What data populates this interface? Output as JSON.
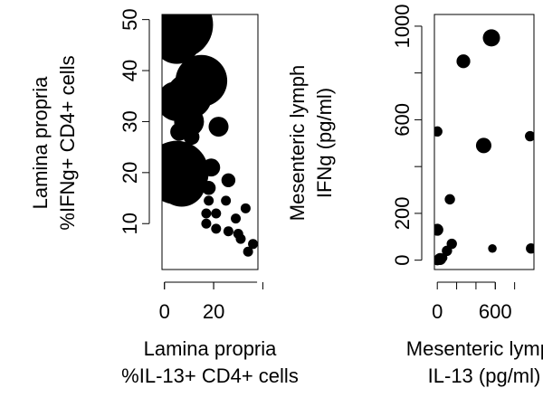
{
  "chart_data": [
    {
      "type": "scatter",
      "title": "",
      "xlabel": [
        "Lamina propria",
        "%IL-13+ CD4+ cells"
      ],
      "ylabel": [
        "Lamina propria",
        "%IFNg+ CD4+ cells"
      ],
      "xlim": [
        -1,
        38
      ],
      "ylim": [
        1,
        51
      ],
      "xticks": [
        0,
        20
      ],
      "yticks": [
        10,
        20,
        30,
        40,
        50
      ],
      "grid": false,
      "points": [
        {
          "x": 6,
          "y": 49,
          "size": 3.4
        },
        {
          "x": 2,
          "y": 50,
          "size": 3.2
        },
        {
          "x": 5,
          "y": 46,
          "size": 2.4
        },
        {
          "x": 15,
          "y": 38,
          "size": 2.6
        },
        {
          "x": 10,
          "y": 35,
          "size": 2.3
        },
        {
          "x": 5,
          "y": 34,
          "size": 2.0
        },
        {
          "x": 10,
          "y": 30,
          "size": 1.5
        },
        {
          "x": 6,
          "y": 28,
          "size": 0.9
        },
        {
          "x": 11,
          "y": 27,
          "size": 0.8
        },
        {
          "x": 22,
          "y": 29,
          "size": 1.0
        },
        {
          "x": 5,
          "y": 20,
          "size": 3.2
        },
        {
          "x": 7,
          "y": 18,
          "size": 2.4
        },
        {
          "x": 19,
          "y": 21,
          "size": 0.9
        },
        {
          "x": 18,
          "y": 17,
          "size": 0.7
        },
        {
          "x": 26,
          "y": 18.5,
          "size": 0.7
        },
        {
          "x": 18,
          "y": 14.5,
          "size": 0.5
        },
        {
          "x": 25,
          "y": 14.5,
          "size": 0.5
        },
        {
          "x": 17,
          "y": 12,
          "size": 0.5
        },
        {
          "x": 21,
          "y": 12,
          "size": 0.5
        },
        {
          "x": 33,
          "y": 13,
          "size": 0.5
        },
        {
          "x": 29,
          "y": 11,
          "size": 0.5
        },
        {
          "x": 17,
          "y": 10,
          "size": 0.5
        },
        {
          "x": 21,
          "y": 9,
          "size": 0.5
        },
        {
          "x": 26,
          "y": 8.5,
          "size": 0.5
        },
        {
          "x": 30,
          "y": 8,
          "size": 0.5
        },
        {
          "x": 31,
          "y": 7,
          "size": 0.5
        },
        {
          "x": 36,
          "y": 6,
          "size": 0.5
        },
        {
          "x": 34,
          "y": 4.5,
          "size": 0.5
        }
      ]
    },
    {
      "type": "scatter",
      "title": "",
      "xlabel": [
        "Mesenteric lymph",
        "IL-13 (pg/ml)"
      ],
      "ylabel": [
        "Mesenteric lymph",
        "IFNg (pg/ml)"
      ],
      "xlim": [
        -30,
        1000
      ],
      "ylim": [
        -40,
        1050
      ],
      "xticks": [
        0,
        600
      ],
      "yticks": [
        0,
        200,
        600,
        1000
      ],
      "grid": false,
      "points": [
        {
          "x": 560,
          "y": 950,
          "size": 1.0
        },
        {
          "x": 270,
          "y": 850,
          "size": 0.8
        },
        {
          "x": 0,
          "y": 550,
          "size": 0.6
        },
        {
          "x": 480,
          "y": 490,
          "size": 0.9
        },
        {
          "x": 960,
          "y": 530,
          "size": 0.6
        },
        {
          "x": 130,
          "y": 260,
          "size": 0.6
        },
        {
          "x": 0,
          "y": 130,
          "size": 0.7
        },
        {
          "x": 150,
          "y": 70,
          "size": 0.6
        },
        {
          "x": 100,
          "y": 40,
          "size": 0.6
        },
        {
          "x": 570,
          "y": 50,
          "size": 0.5
        },
        {
          "x": 970,
          "y": 50,
          "size": 0.6
        },
        {
          "x": 30,
          "y": 5,
          "size": 0.7
        },
        {
          "x": 0,
          "y": 0,
          "size": 0.6
        },
        {
          "x": 60,
          "y": 10,
          "size": 0.5
        }
      ]
    }
  ]
}
